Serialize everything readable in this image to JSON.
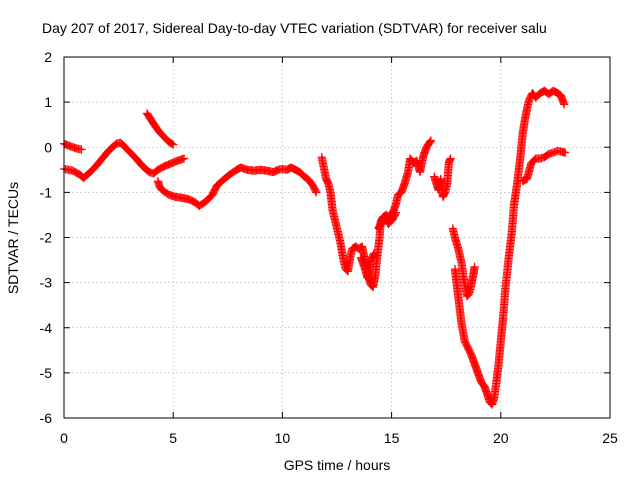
{
  "chart_data": {
    "type": "scatter",
    "title": "Day 207 of 2017, Sidereal Day-to-day VTEC variation (SDTVAR) for receiver salu",
    "xlabel": "GPS time / hours",
    "ylabel": "SDTVAR / TECUs",
    "xlim": [
      0,
      25
    ],
    "ylim": [
      -6,
      2
    ],
    "xticks": [
      0,
      5,
      10,
      15,
      20,
      25
    ],
    "yticks": [
      -6,
      -5,
      -4,
      -3,
      -2,
      -1,
      0,
      1,
      2
    ],
    "grid": true,
    "marker": "plus",
    "color": "#ff0000",
    "series": [
      {
        "segments": [
          [
            [
              0.0,
              0.08
            ],
            [
              0.3,
              0.02
            ],
            [
              0.6,
              -0.03
            ],
            [
              0.8,
              -0.05
            ]
          ],
          [
            [
              0.0,
              -0.48
            ],
            [
              0.4,
              -0.52
            ],
            [
              0.7,
              -0.6
            ],
            [
              0.9,
              -0.68
            ],
            [
              1.2,
              -0.55
            ],
            [
              1.5,
              -0.4
            ],
            [
              1.8,
              -0.22
            ],
            [
              2.1,
              -0.05
            ],
            [
              2.4,
              0.08
            ],
            [
              2.6,
              0.1
            ],
            [
              2.8,
              0.0
            ],
            [
              3.0,
              -0.1
            ],
            [
              3.3,
              -0.25
            ],
            [
              3.6,
              -0.42
            ],
            [
              3.9,
              -0.55
            ],
            [
              4.1,
              -0.58
            ],
            [
              4.3,
              -0.5
            ],
            [
              4.6,
              -0.42
            ],
            [
              4.9,
              -0.36
            ],
            [
              5.2,
              -0.3
            ],
            [
              5.5,
              -0.25
            ]
          ],
          [
            [
              3.8,
              0.75
            ],
            [
              4.0,
              0.6
            ],
            [
              4.2,
              0.45
            ],
            [
              4.4,
              0.32
            ],
            [
              4.6,
              0.22
            ],
            [
              4.8,
              0.12
            ],
            [
              5.0,
              0.06
            ]
          ],
          [
            [
              4.3,
              -0.75
            ],
            [
              4.4,
              -0.9
            ],
            [
              4.5,
              -0.95
            ],
            [
              4.8,
              -1.05
            ],
            [
              5.1,
              -1.1
            ],
            [
              5.4,
              -1.12
            ],
            [
              5.7,
              -1.15
            ],
            [
              6.0,
              -1.22
            ],
            [
              6.2,
              -1.3
            ],
            [
              6.5,
              -1.2
            ],
            [
              6.8,
              -1.05
            ],
            [
              7.0,
              -0.85
            ],
            [
              7.3,
              -0.72
            ],
            [
              7.6,
              -0.6
            ],
            [
              7.9,
              -0.5
            ],
            [
              8.1,
              -0.45
            ],
            [
              8.4,
              -0.5
            ],
            [
              8.7,
              -0.52
            ],
            [
              9.0,
              -0.5
            ],
            [
              9.3,
              -0.52
            ],
            [
              9.6,
              -0.55
            ],
            [
              9.8,
              -0.5
            ],
            [
              10.0,
              -0.48
            ],
            [
              10.2,
              -0.5
            ],
            [
              10.4,
              -0.45
            ],
            [
              10.6,
              -0.5
            ],
            [
              10.8,
              -0.55
            ],
            [
              11.0,
              -0.65
            ],
            [
              11.2,
              -0.72
            ],
            [
              11.4,
              -0.85
            ],
            [
              11.55,
              -1.0
            ]
          ],
          [
            [
              11.8,
              -0.22
            ],
            [
              12.0,
              -0.7
            ],
            [
              12.1,
              -0.8
            ],
            [
              12.2,
              -1.0
            ],
            [
              12.3,
              -1.4
            ],
            [
              12.5,
              -1.8
            ],
            [
              12.65,
              -2.1
            ],
            [
              12.8,
              -2.5
            ],
            [
              12.9,
              -2.7
            ],
            [
              13.0,
              -2.75
            ],
            [
              13.1,
              -2.45
            ],
            [
              13.2,
              -2.25
            ],
            [
              13.35,
              -2.2
            ],
            [
              13.5,
              -2.25
            ],
            [
              13.65,
              -2.2
            ],
            [
              13.8,
              -2.55
            ],
            [
              13.95,
              -2.9
            ],
            [
              14.05,
              -3.05
            ],
            [
              14.15,
              -3.1
            ],
            [
              14.25,
              -2.85
            ],
            [
              14.35,
              -2.4
            ],
            [
              14.45,
              -2.0
            ],
            [
              14.5,
              -1.65
            ],
            [
              14.6,
              -1.55
            ],
            [
              14.75,
              -1.5
            ],
            [
              14.9,
              -1.55
            ],
            [
              15.0,
              -1.5
            ],
            [
              15.1,
              -1.4
            ],
            [
              15.2,
              -1.25
            ],
            [
              15.3,
              -1.05
            ],
            [
              15.45,
              -1.0
            ],
            [
              15.6,
              -0.8
            ],
            [
              15.75,
              -0.55
            ],
            [
              15.85,
              -0.25
            ],
            [
              16.0,
              -0.35
            ],
            [
              16.15,
              -0.3
            ],
            [
              16.3,
              -0.55
            ],
            [
              16.45,
              -0.2
            ],
            [
              16.6,
              0.0
            ],
            [
              16.8,
              0.15
            ]
          ],
          [
            [
              13.6,
              -2.45
            ],
            [
              13.75,
              -2.65
            ],
            [
              13.9,
              -2.9
            ],
            [
              14.05,
              -2.5
            ],
            [
              14.2,
              -2.35
            ]
          ],
          [
            [
              14.4,
              -1.8
            ],
            [
              14.5,
              -1.7
            ],
            [
              14.7,
              -1.55
            ],
            [
              14.85,
              -1.7
            ],
            [
              15.05,
              -1.6
            ],
            [
              15.2,
              -1.45
            ]
          ],
          [
            [
              16.95,
              -0.65
            ],
            [
              17.05,
              -0.8
            ],
            [
              17.15,
              -0.95
            ],
            [
              17.25,
              -0.7
            ],
            [
              17.35,
              -1.1
            ],
            [
              17.45,
              -1.0
            ],
            [
              17.55,
              -0.8
            ],
            [
              17.62,
              -0.35
            ],
            [
              17.7,
              -0.25
            ]
          ],
          [
            [
              17.8,
              -1.8
            ],
            [
              17.9,
              -2.0
            ],
            [
              18.05,
              -2.25
            ],
            [
              18.2,
              -2.55
            ],
            [
              18.3,
              -2.9
            ],
            [
              18.45,
              -3.3
            ],
            [
              18.55,
              -3.25
            ],
            [
              18.65,
              -3.05
            ],
            [
              18.75,
              -2.8
            ],
            [
              18.8,
              -2.65
            ]
          ],
          [
            [
              17.9,
              -2.7
            ],
            [
              18.0,
              -3.1
            ],
            [
              18.1,
              -3.5
            ],
            [
              18.2,
              -3.9
            ],
            [
              18.35,
              -4.3
            ],
            [
              18.5,
              -4.45
            ],
            [
              18.65,
              -4.6
            ],
            [
              18.8,
              -4.8
            ],
            [
              18.95,
              -5.0
            ],
            [
              19.1,
              -5.2
            ],
            [
              19.25,
              -5.3
            ],
            [
              19.4,
              -5.5
            ],
            [
              19.5,
              -5.65
            ],
            [
              19.6,
              -5.7
            ],
            [
              19.7,
              -5.55
            ],
            [
              19.8,
              -5.2
            ],
            [
              19.9,
              -4.8
            ],
            [
              20.0,
              -4.3
            ],
            [
              20.1,
              -3.8
            ],
            [
              20.2,
              -3.2
            ],
            [
              20.35,
              -2.5
            ],
            [
              20.5,
              -1.9
            ],
            [
              20.6,
              -1.3
            ],
            [
              20.75,
              -0.8
            ],
            [
              20.9,
              -0.2
            ],
            [
              21.0,
              0.3
            ],
            [
              21.1,
              0.6
            ],
            [
              21.2,
              0.85
            ],
            [
              21.3,
              1.05
            ],
            [
              21.45,
              1.2
            ],
            [
              21.6,
              1.1
            ],
            [
              21.8,
              1.2
            ],
            [
              22.0,
              1.25
            ],
            [
              22.2,
              1.18
            ],
            [
              22.4,
              1.25
            ],
            [
              22.6,
              1.2
            ],
            [
              22.75,
              1.15
            ],
            [
              22.9,
              0.95
            ]
          ],
          [
            [
              21.0,
              -0.75
            ],
            [
              21.2,
              -0.7
            ],
            [
              21.4,
              -0.35
            ],
            [
              21.6,
              -0.25
            ],
            [
              21.8,
              -0.25
            ],
            [
              22.0,
              -0.22
            ],
            [
              22.2,
              -0.15
            ],
            [
              22.4,
              -0.12
            ],
            [
              22.6,
              -0.08
            ],
            [
              22.8,
              -0.1
            ],
            [
              22.95,
              -0.12
            ]
          ]
        ]
      }
    ]
  }
}
